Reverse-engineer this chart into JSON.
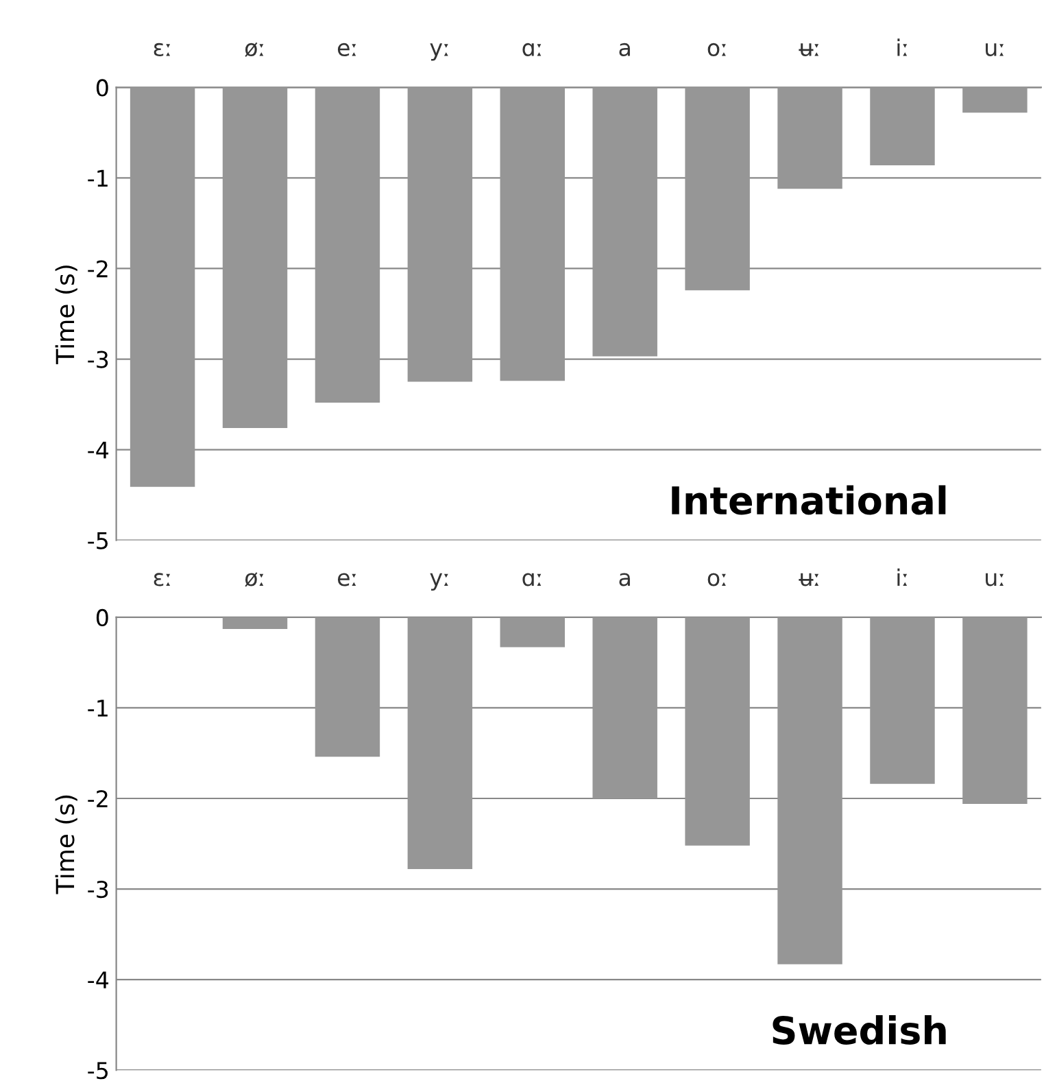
{
  "chart_data": [
    {
      "type": "bar",
      "ylabel": "Time (s)",
      "categories": [
        "ɛː",
        "øː",
        "eː",
        "yː",
        "ɑː",
        "a",
        "oː",
        "ʉː",
        "iː",
        "uː"
      ],
      "values": [
        -4.41,
        -3.76,
        -3.48,
        -3.25,
        -3.24,
        -2.97,
        -2.24,
        -1.12,
        -0.86,
        -0.28
      ],
      "color": "#969696",
      "ylim": [
        -5,
        0
      ],
      "yticks": [
        -5,
        -4,
        -3,
        -2,
        -1,
        0
      ],
      "grid": "y",
      "annotations": [
        "International"
      ]
    },
    {
      "type": "bar",
      "ylabel": "Time (s)",
      "categories": [
        "ɛː",
        "øː",
        "eː",
        "yː",
        "ɑː",
        "a",
        "oː",
        "ʉː",
        "iː",
        "uː"
      ],
      "values": [
        0,
        -0.13,
        -1.54,
        -2.78,
        -0.33,
        -2.0,
        -2.52,
        -3.83,
        -1.84,
        -2.06
      ],
      "color": "#969696",
      "ylim": [
        -5,
        0
      ],
      "yticks": [
        -5,
        -4,
        -3,
        -2,
        -1,
        0
      ],
      "grid": "y",
      "annotations": [
        "Swedish"
      ]
    }
  ]
}
